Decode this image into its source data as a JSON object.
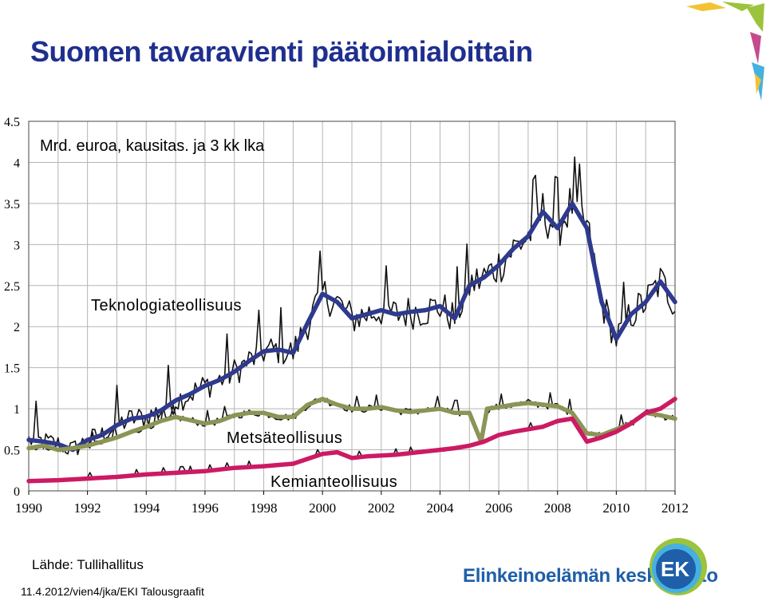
{
  "title": "Suomen tavaravienti päätoimialoittain",
  "source": "Lähde: Tullihallitus",
  "credit": "11.4.2012/vien4/jka/EKI Talousgraafit",
  "brand": {
    "name": "Elinkeinoelämän keskusliitto",
    "logo_text": "EK",
    "colors": {
      "text": "#1f5ea8",
      "logo_blue": "#1f5ea8",
      "logo_cyan": "#45b1e0",
      "logo_green": "#9cc33c"
    }
  },
  "chart_data": {
    "type": "line",
    "unit_label": "Mrd. euroa, kausitas. ja 3 kk lka",
    "x_ticks": [
      "1990",
      "1992",
      "1994",
      "1996",
      "1998",
      "2000",
      "2002",
      "2004",
      "2006",
      "2008",
      "2010",
      "2012"
    ],
    "y_ticks": [
      "0",
      "0.5",
      "1",
      "1.5",
      "2",
      "2.5",
      "3",
      "3.5",
      "4",
      "4.5"
    ],
    "xlim": [
      1990,
      2012
    ],
    "ylim": [
      0,
      4.5
    ],
    "grid": true,
    "series": [
      {
        "name": "Teknologiateollisuus",
        "color": "#2e3a8e",
        "trend_x": [
          1990,
          1990.5,
          1991,
          1991.5,
          1992,
          1992.5,
          1993,
          1993.5,
          1994,
          1994.5,
          1995,
          1995.5,
          1996,
          1996.5,
          1997,
          1997.5,
          1998,
          1998.5,
          1999,
          1999.5,
          2000,
          2000.5,
          2001,
          2001.5,
          2002,
          2002.5,
          2003,
          2003.5,
          2004,
          2004.5,
          2005,
          2005.5,
          2006,
          2006.5,
          2007,
          2007.5,
          2008,
          2008.5,
          2009,
          2009.5,
          2010,
          2010.5,
          2011,
          2011.5,
          2012
        ],
        "trend_y": [
          0.62,
          0.6,
          0.57,
          0.5,
          0.62,
          0.68,
          0.8,
          0.88,
          0.9,
          0.98,
          1.1,
          1.18,
          1.28,
          1.35,
          1.45,
          1.58,
          1.7,
          1.72,
          1.68,
          2.05,
          2.4,
          2.3,
          2.1,
          2.15,
          2.2,
          2.15,
          2.18,
          2.2,
          2.25,
          2.1,
          2.5,
          2.6,
          2.75,
          2.95,
          3.1,
          3.4,
          3.2,
          3.5,
          3.2,
          2.3,
          1.85,
          2.15,
          2.3,
          2.55,
          2.3
        ]
      },
      {
        "name": "Metsäteollisuus",
        "color": "#8c9456",
        "trend_x": [
          1990,
          1990.5,
          1991,
          1991.5,
          1992,
          1992.5,
          1993,
          1993.5,
          1994,
          1994.5,
          1995,
          1995.5,
          1996,
          1996.5,
          1997,
          1997.5,
          1998,
          1998.5,
          1999,
          1999.5,
          2000,
          2000.5,
          2001,
          2001.5,
          2002,
          2002.5,
          2003,
          2003.5,
          2004,
          2004.5,
          2005,
          2005.4,
          2005.6,
          2006,
          2006.5,
          2007,
          2007.5,
          2008,
          2008.5,
          2009,
          2009.5,
          2010,
          2010.5,
          2011,
          2011.5,
          2012
        ],
        "trend_y": [
          0.52,
          0.55,
          0.5,
          0.52,
          0.55,
          0.6,
          0.65,
          0.72,
          0.78,
          0.85,
          0.9,
          0.86,
          0.82,
          0.85,
          0.92,
          0.95,
          0.95,
          0.9,
          0.9,
          1.05,
          1.12,
          1.05,
          1.0,
          1.0,
          1.02,
          0.98,
          0.96,
          0.98,
          1.0,
          0.95,
          0.95,
          0.6,
          1.0,
          1.02,
          1.05,
          1.07,
          1.05,
          1.03,
          0.95,
          0.7,
          0.68,
          0.75,
          0.82,
          0.95,
          0.92,
          0.88
        ]
      },
      {
        "name": "Kemianteollisuus",
        "color": "#cc1a63",
        "trend_x": [
          1990,
          1991,
          1992,
          1993,
          1994,
          1995,
          1996,
          1997,
          1998,
          1999,
          2000,
          2000.5,
          2001,
          2001.5,
          2002,
          2002.5,
          2003,
          2003.5,
          2004,
          2004.5,
          2005,
          2005.5,
          2006,
          2006.5,
          2007,
          2007.5,
          2008,
          2008.5,
          2009,
          2009.5,
          2010,
          2010.5,
          2011,
          2011.5,
          2012
        ],
        "trend_y": [
          0.12,
          0.13,
          0.15,
          0.17,
          0.2,
          0.22,
          0.24,
          0.28,
          0.3,
          0.33,
          0.45,
          0.47,
          0.4,
          0.42,
          0.43,
          0.44,
          0.46,
          0.48,
          0.5,
          0.52,
          0.55,
          0.6,
          0.68,
          0.72,
          0.75,
          0.78,
          0.85,
          0.88,
          0.6,
          0.65,
          0.72,
          0.82,
          0.95,
          1.0,
          1.12
        ]
      }
    ]
  }
}
